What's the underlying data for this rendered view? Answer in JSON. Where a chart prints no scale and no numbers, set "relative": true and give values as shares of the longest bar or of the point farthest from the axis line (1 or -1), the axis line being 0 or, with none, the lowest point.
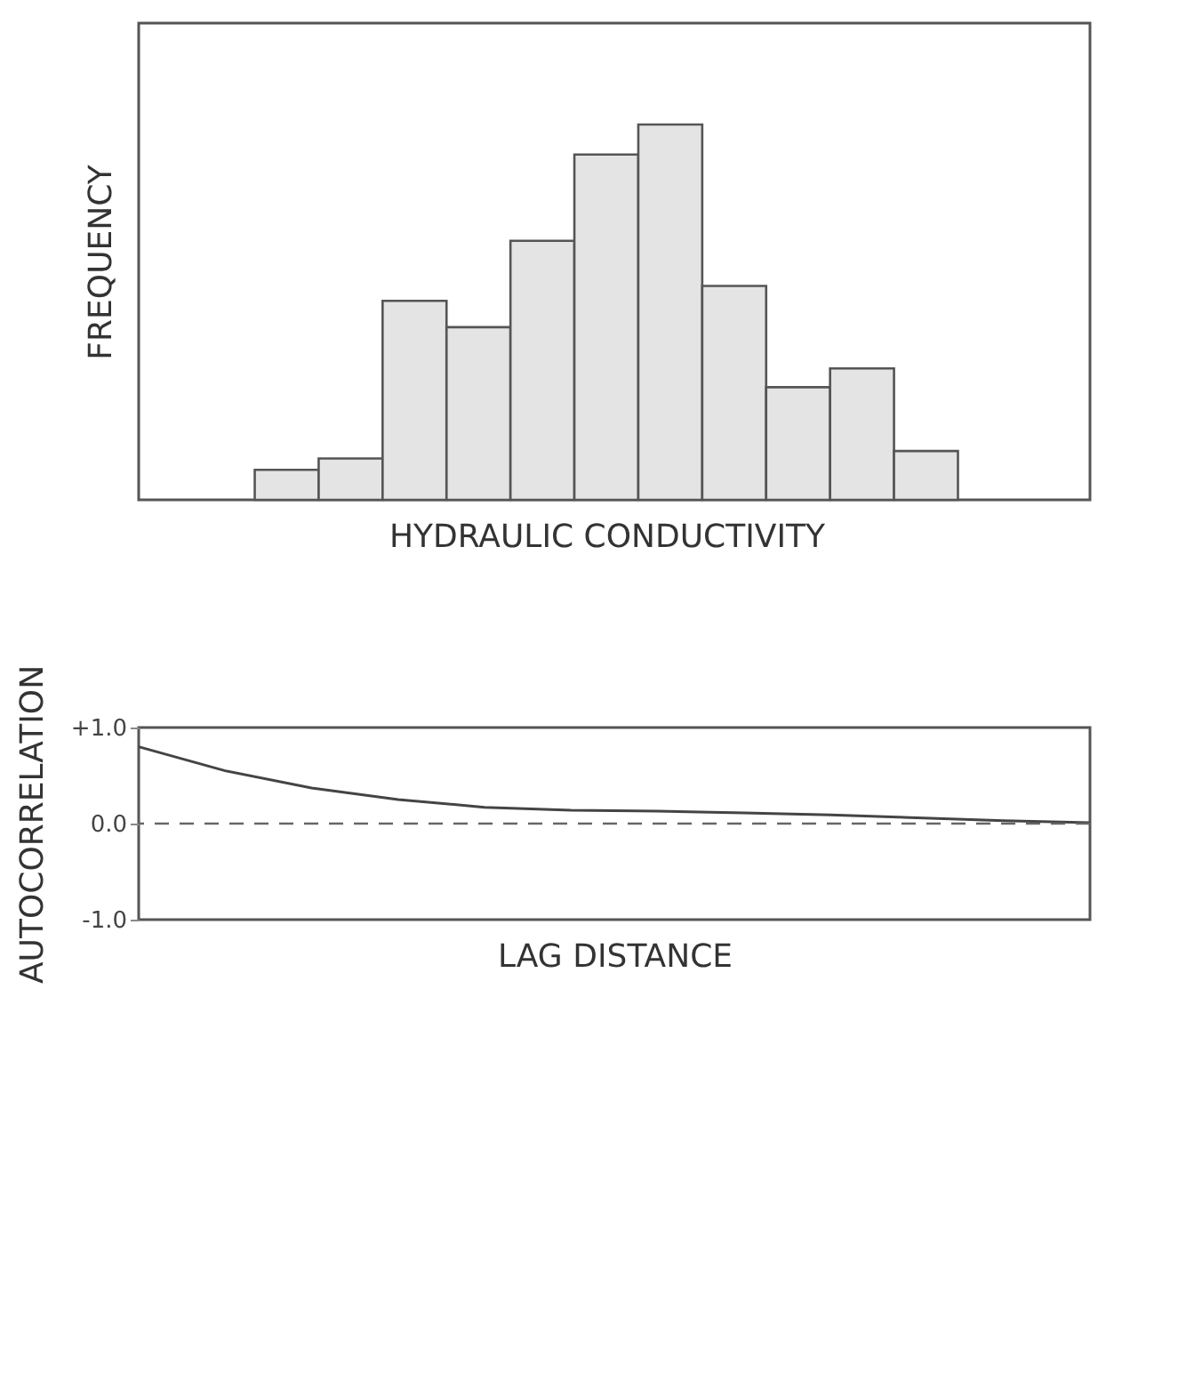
{
  "chart_data": [
    {
      "type": "bar",
      "relative": true,
      "ylabel": "FREQUENCY",
      "xlabel": "HYDRAULIC CONDUCTIVITY",
      "color": "#e4e4e4",
      "categories": [
        null,
        null,
        null,
        null,
        null,
        null,
        null,
        null,
        null,
        null,
        null
      ],
      "values": [
        0.08,
        0.11,
        0.53,
        0.46,
        0.69,
        0.92,
        1,
        0.57,
        0.3,
        0.35,
        0.13
      ]
    },
    {
      "type": "line",
      "ylabel": "AUTOCORRELATION",
      "xlabel": "LAG DISTANCE",
      "color": "#444444",
      "tick_labels": "y",
      "line_style": "solid",
      "marker": "none",
      "categories": [
        null,
        null,
        null,
        null,
        null,
        null,
        null,
        null,
        null,
        null,
        null,
        null
      ],
      "values": [
        0.8,
        0.55,
        0.37,
        0.25,
        0.17,
        0.14,
        0.13,
        0.11,
        0.09,
        0.06,
        0.03,
        0.01
      ],
      "ylim": [
        -1,
        1
      ],
      "yticks": [
        {
          "value": 1,
          "label": "+1.0"
        },
        {
          "value": 0,
          "label": "0.0"
        },
        {
          "value": -1,
          "label": "-1.0"
        }
      ],
      "ref_lines": [
        {
          "axis": "y",
          "value": 0,
          "label": null,
          "line_style": "dashed",
          "color": "#666666"
        }
      ]
    }
  ]
}
